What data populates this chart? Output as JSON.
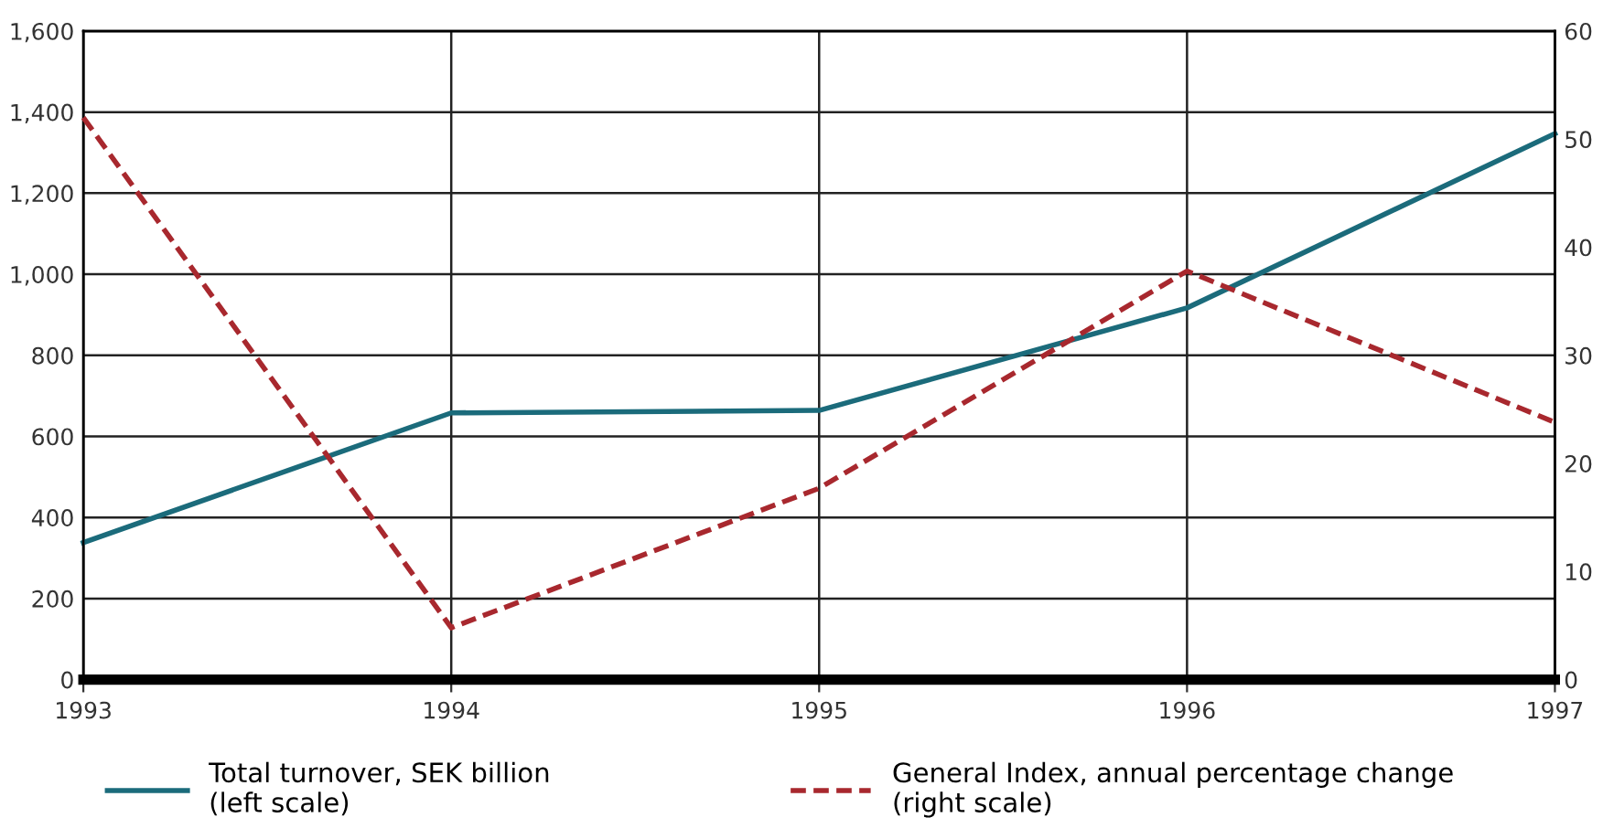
{
  "chart_data": {
    "type": "line",
    "x": [
      1993,
      1994,
      1995,
      1996,
      1997
    ],
    "xlim": [
      1993,
      1997
    ],
    "xticks": [
      1993,
      1994,
      1995,
      1996,
      1997
    ],
    "ylim": [
      0,
      1600
    ],
    "yticks": [
      {
        "value": 0,
        "label": "0"
      },
      {
        "value": 200,
        "label": "200"
      },
      {
        "value": 400,
        "label": "400"
      },
      {
        "value": 600,
        "label": "600"
      },
      {
        "value": 800,
        "label": "800"
      },
      {
        "value": 1000,
        "label": "1,000"
      },
      {
        "value": 1200,
        "label": "1,200"
      },
      {
        "value": 1400,
        "label": "1,400"
      },
      {
        "value": 1600,
        "label": "1,600"
      }
    ],
    "y2lim": [
      0,
      60
    ],
    "y2ticks": [
      0,
      10,
      20,
      30,
      40,
      50,
      60
    ],
    "grid": true,
    "legend": "bottom",
    "marker": "none",
    "series": [
      {
        "name": "Total turnover, SEK billion\n(left scale)",
        "color": "#1b6b7b",
        "values": [
          338,
          658,
          664,
          917,
          1347
        ],
        "line_style": "solid"
      },
      {
        "name": "General Index, annual percentage change\n(right scale)",
        "color": "#a8282e",
        "values": [
          52,
          4.8,
          17.7,
          37.8,
          23.8
        ],
        "axis": "y2",
        "line_style": "dashed"
      }
    ]
  }
}
